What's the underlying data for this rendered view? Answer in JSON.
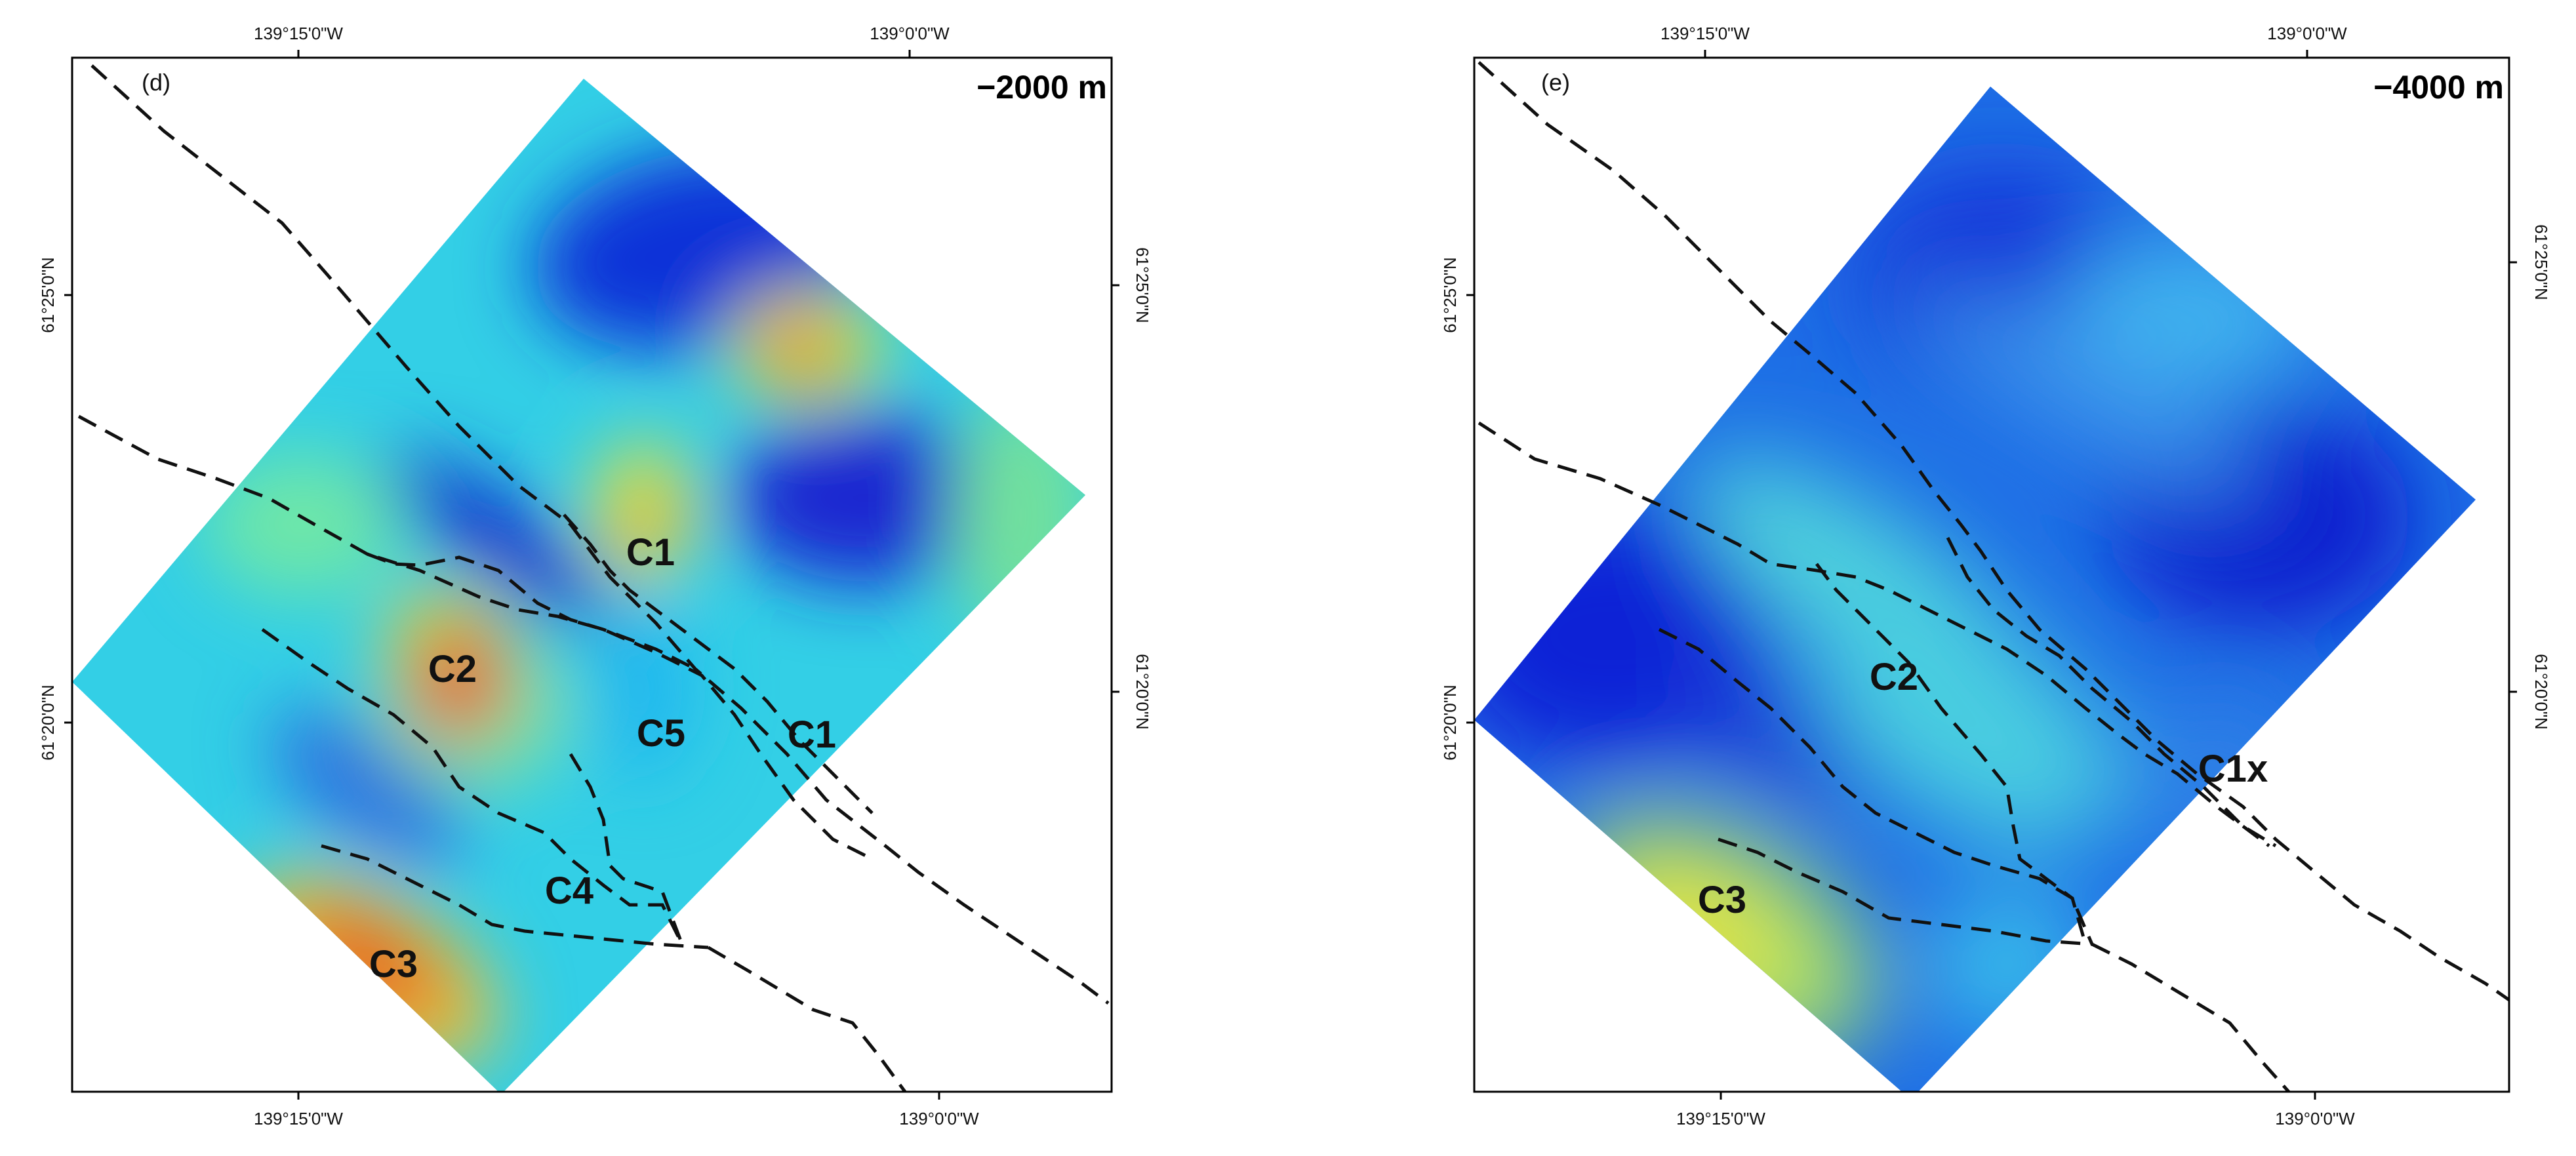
{
  "panels": [
    {
      "id": "d",
      "panel_letter": "(d)",
      "depth": "−2000 m",
      "top_ticks": [
        "139°15'0\"W",
        "139°0'0\"W"
      ],
      "bottom_ticks": [
        "139°15'0\"W",
        "139°0'0\"W"
      ],
      "left_ticks": [
        "61°25'0\"N",
        "61°20'0\"N"
      ],
      "right_ticks": [
        "61°25'0\"N",
        "61°20'0\"N"
      ],
      "zones": [
        "C1",
        "C2",
        "C5",
        "C1",
        "C4",
        "C3"
      ]
    },
    {
      "id": "e",
      "panel_letter": "(e)",
      "depth": "−4000 m",
      "top_ticks": [
        "139°15'0\"W",
        "139°0'0\"W"
      ],
      "bottom_ticks": [
        "139°15'0\"W",
        "139°0'0\"W"
      ],
      "left_ticks": [
        "61°25'0\"N",
        "61°20'0\"N"
      ],
      "right_ticks": [
        "61°25'0\"N",
        "61°20'0\"N"
      ],
      "zones": [
        "C2",
        "C1x",
        "C3"
      ]
    }
  ],
  "colors": {
    "background_field": "#2fd0e8",
    "low": "#0a1fd6",
    "high": "#e8401a",
    "mid": "#f2e63a",
    "fault_line": "#111111"
  }
}
